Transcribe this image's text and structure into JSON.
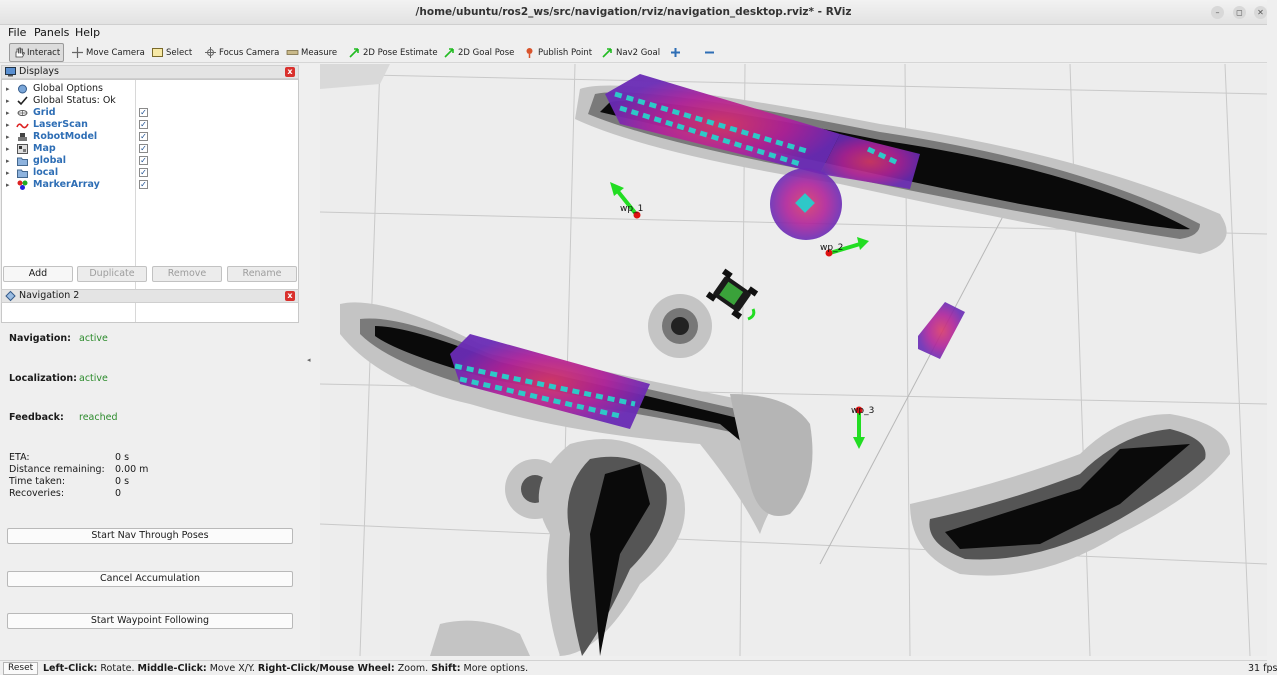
{
  "window": {
    "title": "/home/ubuntu/ros2_ws/src/navigation/rviz/navigation_desktop.rviz* - RViz",
    "controls": [
      "–",
      "◻",
      "✕"
    ]
  },
  "menu": {
    "items": [
      "File",
      "Panels",
      "Help"
    ]
  },
  "toolbar": {
    "tools": [
      {
        "label": "Interact",
        "icon": "hand-icon",
        "active": true
      },
      {
        "label": "Move Camera",
        "icon": "move-camera-icon"
      },
      {
        "label": "Select",
        "icon": "select-icon"
      },
      {
        "label": "Focus Camera",
        "icon": "focus-camera-icon"
      },
      {
        "label": "Measure",
        "icon": "measure-icon"
      },
      {
        "label": "2D Pose Estimate",
        "icon": "pose-arrow-icon"
      },
      {
        "label": "2D Goal Pose",
        "icon": "goal-arrow-icon"
      },
      {
        "label": "Publish Point",
        "icon": "pin-icon"
      },
      {
        "label": "Nav2 Goal",
        "icon": "nav2-arrow-icon"
      }
    ],
    "extra_icons": [
      "plus-icon",
      "minus-icon"
    ]
  },
  "displays": {
    "title": "Displays",
    "items": [
      {
        "label": "Global Options",
        "style": "plain",
        "icon": "globe-icon"
      },
      {
        "label": "Global Status: Ok",
        "style": "plain",
        "icon": "checkmark-icon"
      },
      {
        "label": "Grid",
        "style": "blue",
        "checked": true,
        "icon": "grid-icon"
      },
      {
        "label": "LaserScan",
        "style": "blue",
        "checked": true,
        "icon": "laserscan-icon"
      },
      {
        "label": "RobotModel",
        "style": "blue",
        "checked": true,
        "icon": "robot-icon"
      },
      {
        "label": "Map",
        "style": "blue",
        "checked": true,
        "icon": "map-icon"
      },
      {
        "label": "global",
        "style": "blue",
        "checked": true,
        "icon": "folder-icon"
      },
      {
        "label": "local",
        "style": "blue",
        "checked": true,
        "icon": "folder-icon"
      },
      {
        "label": "MarkerArray",
        "style": "blue",
        "checked": true,
        "icon": "markers-icon"
      }
    ],
    "check_mark": "✓",
    "buttons": {
      "add": "Add",
      "duplicate": "Duplicate",
      "remove": "Remove",
      "rename": "Rename"
    }
  },
  "navigation": {
    "title": "Navigation 2",
    "status": [
      {
        "label": "Navigation:",
        "value": "active"
      },
      {
        "label": "Localization:",
        "value": "active"
      },
      {
        "label": "Feedback:",
        "value": "reached"
      }
    ],
    "stats": [
      {
        "label": "ETA:",
        "value": "0 s"
      },
      {
        "label": "Distance remaining:",
        "value": "0.00 m"
      },
      {
        "label": "Time taken:",
        "value": "0 s"
      },
      {
        "label": "Recoveries:",
        "value": "0"
      }
    ],
    "buttons": {
      "nav_through_poses": "Start Nav Through Poses",
      "cancel_accumulation": "Cancel Accumulation",
      "waypoint_following": "Start Waypoint Following"
    }
  },
  "viewport": {
    "waypoints": [
      "wp_1",
      "wp_2",
      "wp_3"
    ],
    "colors": {
      "obstacle": "#0a0a0a",
      "costmap_magenta": "#b0239a",
      "costmap_purple": "#6a2bb5",
      "inflation_cyan": "#2ec8c8",
      "goal_arrow": "#22dd22",
      "waypoint_dot": "#dd1111"
    }
  },
  "status_bar": {
    "reset": "Reset",
    "help_parts": [
      {
        "text": "Left-Click:",
        "bold": true
      },
      {
        "text": " Rotate. ",
        "bold": false
      },
      {
        "text": "Middle-Click:",
        "bold": true
      },
      {
        "text": " Move X/Y. ",
        "bold": false
      },
      {
        "text": "Right-Click/Mouse Wheel:",
        "bold": true
      },
      {
        "text": " Zoom. ",
        "bold": false
      },
      {
        "text": "Shift:",
        "bold": true
      },
      {
        "text": " More options.",
        "bold": false
      }
    ],
    "fps": "31 fps"
  }
}
